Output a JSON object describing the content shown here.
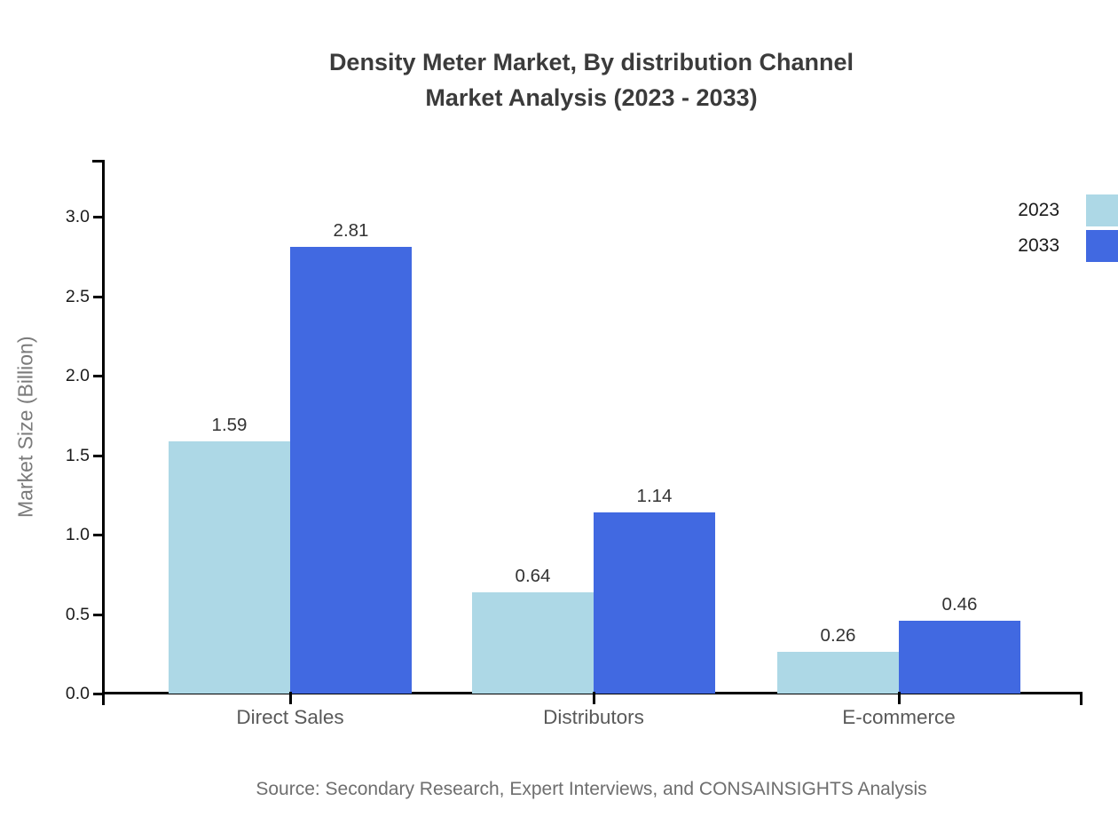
{
  "title": {
    "line1": "Density Meter Market, By distribution Channel",
    "line2": "Market Analysis (2023 - 2033)"
  },
  "source": "Source: Secondary Research, Expert Interviews, and CONSAINSIGHTS Analysis",
  "chart_data": {
    "type": "bar",
    "categories": [
      "Direct Sales",
      "Distributors",
      "E-commerce"
    ],
    "series": [
      {
        "name": "2023",
        "color": "#ADD8E6",
        "values": [
          1.59,
          0.64,
          0.26
        ]
      },
      {
        "name": "2033",
        "color": "#4169E1",
        "values": [
          2.81,
          1.14,
          0.46
        ]
      }
    ],
    "title": "Density Meter Market, By distribution Channel Market Analysis (2023 - 2033)",
    "xlabel": "",
    "ylabel": "Market Size (Billion)",
    "ylim": [
      0,
      3.36
    ],
    "yticks": [
      0.0,
      0.5,
      1.0,
      1.5,
      2.0,
      2.5,
      3.0
    ],
    "grid": false,
    "value_labels": true,
    "legend_position": "top-right",
    "axis_color": "#000000",
    "text_colors": {
      "title": "#3b3b3b",
      "value_label": "#333333",
      "tick_label": "#1a1a1a",
      "category_label": "#595959",
      "axis_title": "#7a7a7a",
      "source": "#6e6e6e"
    }
  }
}
